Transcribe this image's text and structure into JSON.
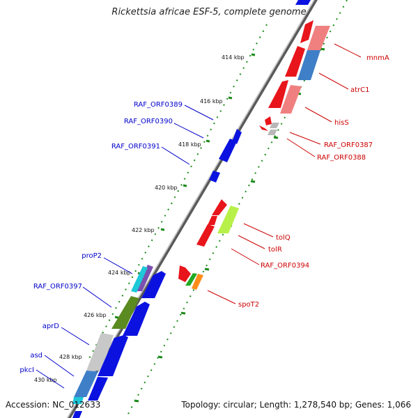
{
  "title": "Rickettsia africae ESF-5, complete genome",
  "footer": {
    "accession": "Accession: NC_012633",
    "summary": "Topology: circular; Length: 1,278,540 bp; Genes: 1,066"
  },
  "colors": {
    "forward": "#e8151b",
    "reverse": "#0b12e0",
    "label_forward": "#cc0000",
    "label_reverse": "#0000cc",
    "backbone": "#888888",
    "tick": "#1a8a1a"
  },
  "ticks": [
    "414 kbp",
    "416 kbp",
    "418 kbp",
    "420 kbp",
    "422 kbp",
    "424 kbp",
    "426 kbp",
    "428 kbp",
    "430 kbp"
  ],
  "forward_labels": [
    "mnmA",
    "atrC1",
    "hisS",
    "RAF_ORF0387",
    "RAF_ORF0388",
    "tolQ",
    "tolR",
    "RAF_ORF0394",
    "spoT2"
  ],
  "reverse_labels": [
    "RAF_ORF0389",
    "RAF_ORF0390",
    "RAF_ORF0391",
    "proP2",
    "RAF_ORF0397",
    "aprD",
    "asd",
    "pkcI"
  ]
}
